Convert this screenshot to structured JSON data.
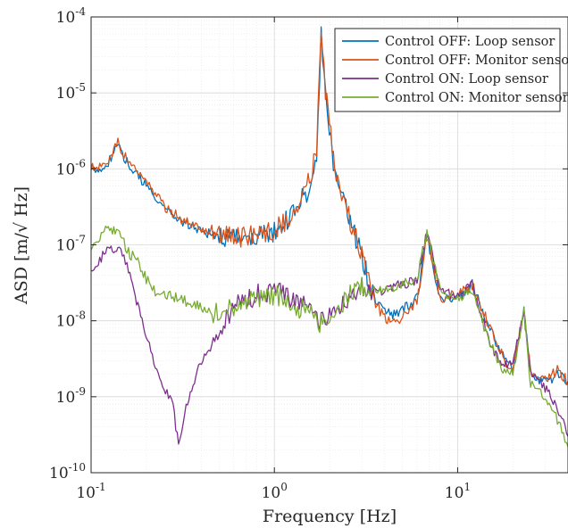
{
  "chart_data": {
    "type": "line",
    "xlabel": "Frequency [Hz]",
    "ylabel": "ASD [m/√ Hz]",
    "xscale": "log",
    "yscale": "log",
    "xlim": [
      0.1,
      40
    ],
    "ylim": [
      1e-10,
      0.0001
    ],
    "grid": true,
    "legend": "top-right",
    "x_ticks": [
      {
        "value": 0.1,
        "base": "10",
        "exp": "-1"
      },
      {
        "value": 1,
        "base": "10",
        "exp": "0"
      },
      {
        "value": 10,
        "base": "10",
        "exp": "1"
      }
    ],
    "y_ticks": [
      {
        "value": 1e-10,
        "base": "10",
        "exp": "-10"
      },
      {
        "value": 1e-09,
        "base": "10",
        "exp": "-9"
      },
      {
        "value": 1e-08,
        "base": "10",
        "exp": "-8"
      },
      {
        "value": 1e-07,
        "base": "10",
        "exp": "-7"
      },
      {
        "value": 1e-06,
        "base": "10",
        "exp": "-6"
      },
      {
        "value": 1e-05,
        "base": "10",
        "exp": "-5"
      },
      {
        "value": 0.0001,
        "base": "10",
        "exp": "-4"
      }
    ],
    "series": [
      {
        "name": "Control OFF: Loop sensor",
        "color": "#0072bd",
        "x": [
          0.1,
          0.12,
          0.14,
          0.16,
          0.2,
          0.25,
          0.3,
          0.4,
          0.5,
          0.6,
          0.8,
          1.0,
          1.2,
          1.5,
          1.7,
          1.8,
          1.9,
          2.1,
          2.5,
          3.0,
          3.5,
          4.0,
          4.5,
          5.0,
          6.0,
          6.8,
          8.0,
          10.0,
          12.0,
          15.0,
          18.0,
          20.0,
          23.0,
          25.0,
          30.0,
          35.0,
          40.0
        ],
        "y": [
          9e-07,
          1.1e-06,
          2e-06,
          1.1e-06,
          6e-07,
          3e-07,
          2.2e-07,
          1.5e-07,
          1.3e-07,
          1.2e-07,
          1.3e-07,
          1.5e-07,
          2.2e-07,
          5e-07,
          1.5e-06,
          5.5e-05,
          1e-05,
          1.2e-06,
          2.5e-07,
          7e-08,
          2e-08,
          1.3e-08,
          1.2e-08,
          1.4e-08,
          2e-08,
          1.3e-07,
          2e-08,
          2e-08,
          3e-08,
          8e-09,
          3e-09,
          2.5e-09,
          1.3e-08,
          2e-09,
          1.5e-09,
          2e-09,
          1.5e-09
        ]
      },
      {
        "name": "Control OFF: Monitor sensor",
        "color": "#d95319",
        "x": [
          0.1,
          0.12,
          0.14,
          0.16,
          0.2,
          0.25,
          0.3,
          0.4,
          0.5,
          0.6,
          0.8,
          1.0,
          1.2,
          1.5,
          1.7,
          1.8,
          1.9,
          2.1,
          2.5,
          3.0,
          3.5,
          4.0,
          4.5,
          5.0,
          6.0,
          6.8,
          8.0,
          10.0,
          12.0,
          15.0,
          18.0,
          20.0,
          23.0,
          25.0,
          30.0,
          35.0,
          40.0
        ],
        "y": [
          1e-06,
          1.2e-06,
          2.2e-06,
          1.2e-06,
          6.5e-07,
          3.2e-07,
          2.3e-07,
          1.6e-07,
          1.35e-07,
          1.25e-07,
          1.35e-07,
          1.6e-07,
          2.3e-07,
          5.5e-07,
          1.6e-06,
          6.5e-05,
          1.1e-05,
          1.3e-06,
          2.7e-07,
          7.5e-08,
          1.8e-08,
          1.1e-08,
          9e-09,
          1.1e-08,
          1.8e-08,
          1.3e-07,
          2e-08,
          2.2e-08,
          3e-08,
          8e-09,
          3e-09,
          2.5e-09,
          1.3e-08,
          2.2e-09,
          1.6e-09,
          2.2e-09,
          1.6e-09
        ]
      },
      {
        "name": "Control ON: Loop sensor",
        "color": "#7e2f8e",
        "x": [
          0.1,
          0.12,
          0.14,
          0.16,
          0.18,
          0.2,
          0.22,
          0.25,
          0.28,
          0.3,
          0.33,
          0.4,
          0.5,
          0.6,
          0.8,
          1.0,
          1.2,
          1.5,
          1.8,
          2.0,
          2.5,
          3.0,
          3.5,
          4.0,
          5.0,
          6.0,
          6.8,
          8.0,
          10.0,
          12.0,
          15.0,
          18.0,
          20.0,
          23.0,
          25.0,
          30.0,
          35.0,
          40.0
        ],
        "y": [
          5e-08,
          8e-08,
          9e-08,
          5e-08,
          1.5e-08,
          7e-09,
          3e-09,
          1.3e-09,
          8e-10,
          2.2e-10,
          8e-10,
          3e-09,
          7e-09,
          1.5e-08,
          2.2e-08,
          2.5e-08,
          2e-08,
          1.5e-08,
          1e-08,
          1.3e-08,
          2e-08,
          3e-08,
          2.5e-08,
          2.5e-08,
          3e-08,
          3.5e-08,
          1.5e-07,
          2.5e-08,
          2e-08,
          3e-08,
          5e-09,
          2.5e-09,
          3e-09,
          1.3e-08,
          2e-09,
          1.3e-09,
          7e-10,
          3e-10
        ]
      },
      {
        "name": "Control ON: Monitor sensor",
        "color": "#77ac30",
        "x": [
          0.1,
          0.12,
          0.14,
          0.16,
          0.18,
          0.2,
          0.22,
          0.25,
          0.28,
          0.3,
          0.33,
          0.4,
          0.5,
          0.6,
          0.8,
          1.0,
          1.2,
          1.5,
          1.8,
          2.0,
          2.5,
          3.0,
          3.5,
          4.0,
          5.0,
          6.0,
          6.8,
          8.0,
          10.0,
          12.0,
          15.0,
          18.0,
          20.0,
          23.0,
          25.0,
          30.0,
          35.0,
          40.0
        ],
        "y": [
          1e-07,
          1.6e-07,
          1.5e-07,
          8e-08,
          6e-08,
          3.5e-08,
          2.5e-08,
          2.3e-08,
          2e-08,
          2e-08,
          1.8e-08,
          1.5e-08,
          1.2e-08,
          1.6e-08,
          2e-08,
          2.2e-08,
          1.8e-08,
          1.3e-08,
          9e-09,
          1.2e-08,
          2e-08,
          3e-08,
          2.5e-08,
          2.5e-08,
          3e-08,
          3.5e-08,
          1.5e-07,
          2.5e-08,
          2e-08,
          2.5e-08,
          5e-09,
          2e-09,
          2e-09,
          1.3e-08,
          1.5e-09,
          1e-09,
          5e-10,
          2.2e-10
        ]
      }
    ]
  }
}
